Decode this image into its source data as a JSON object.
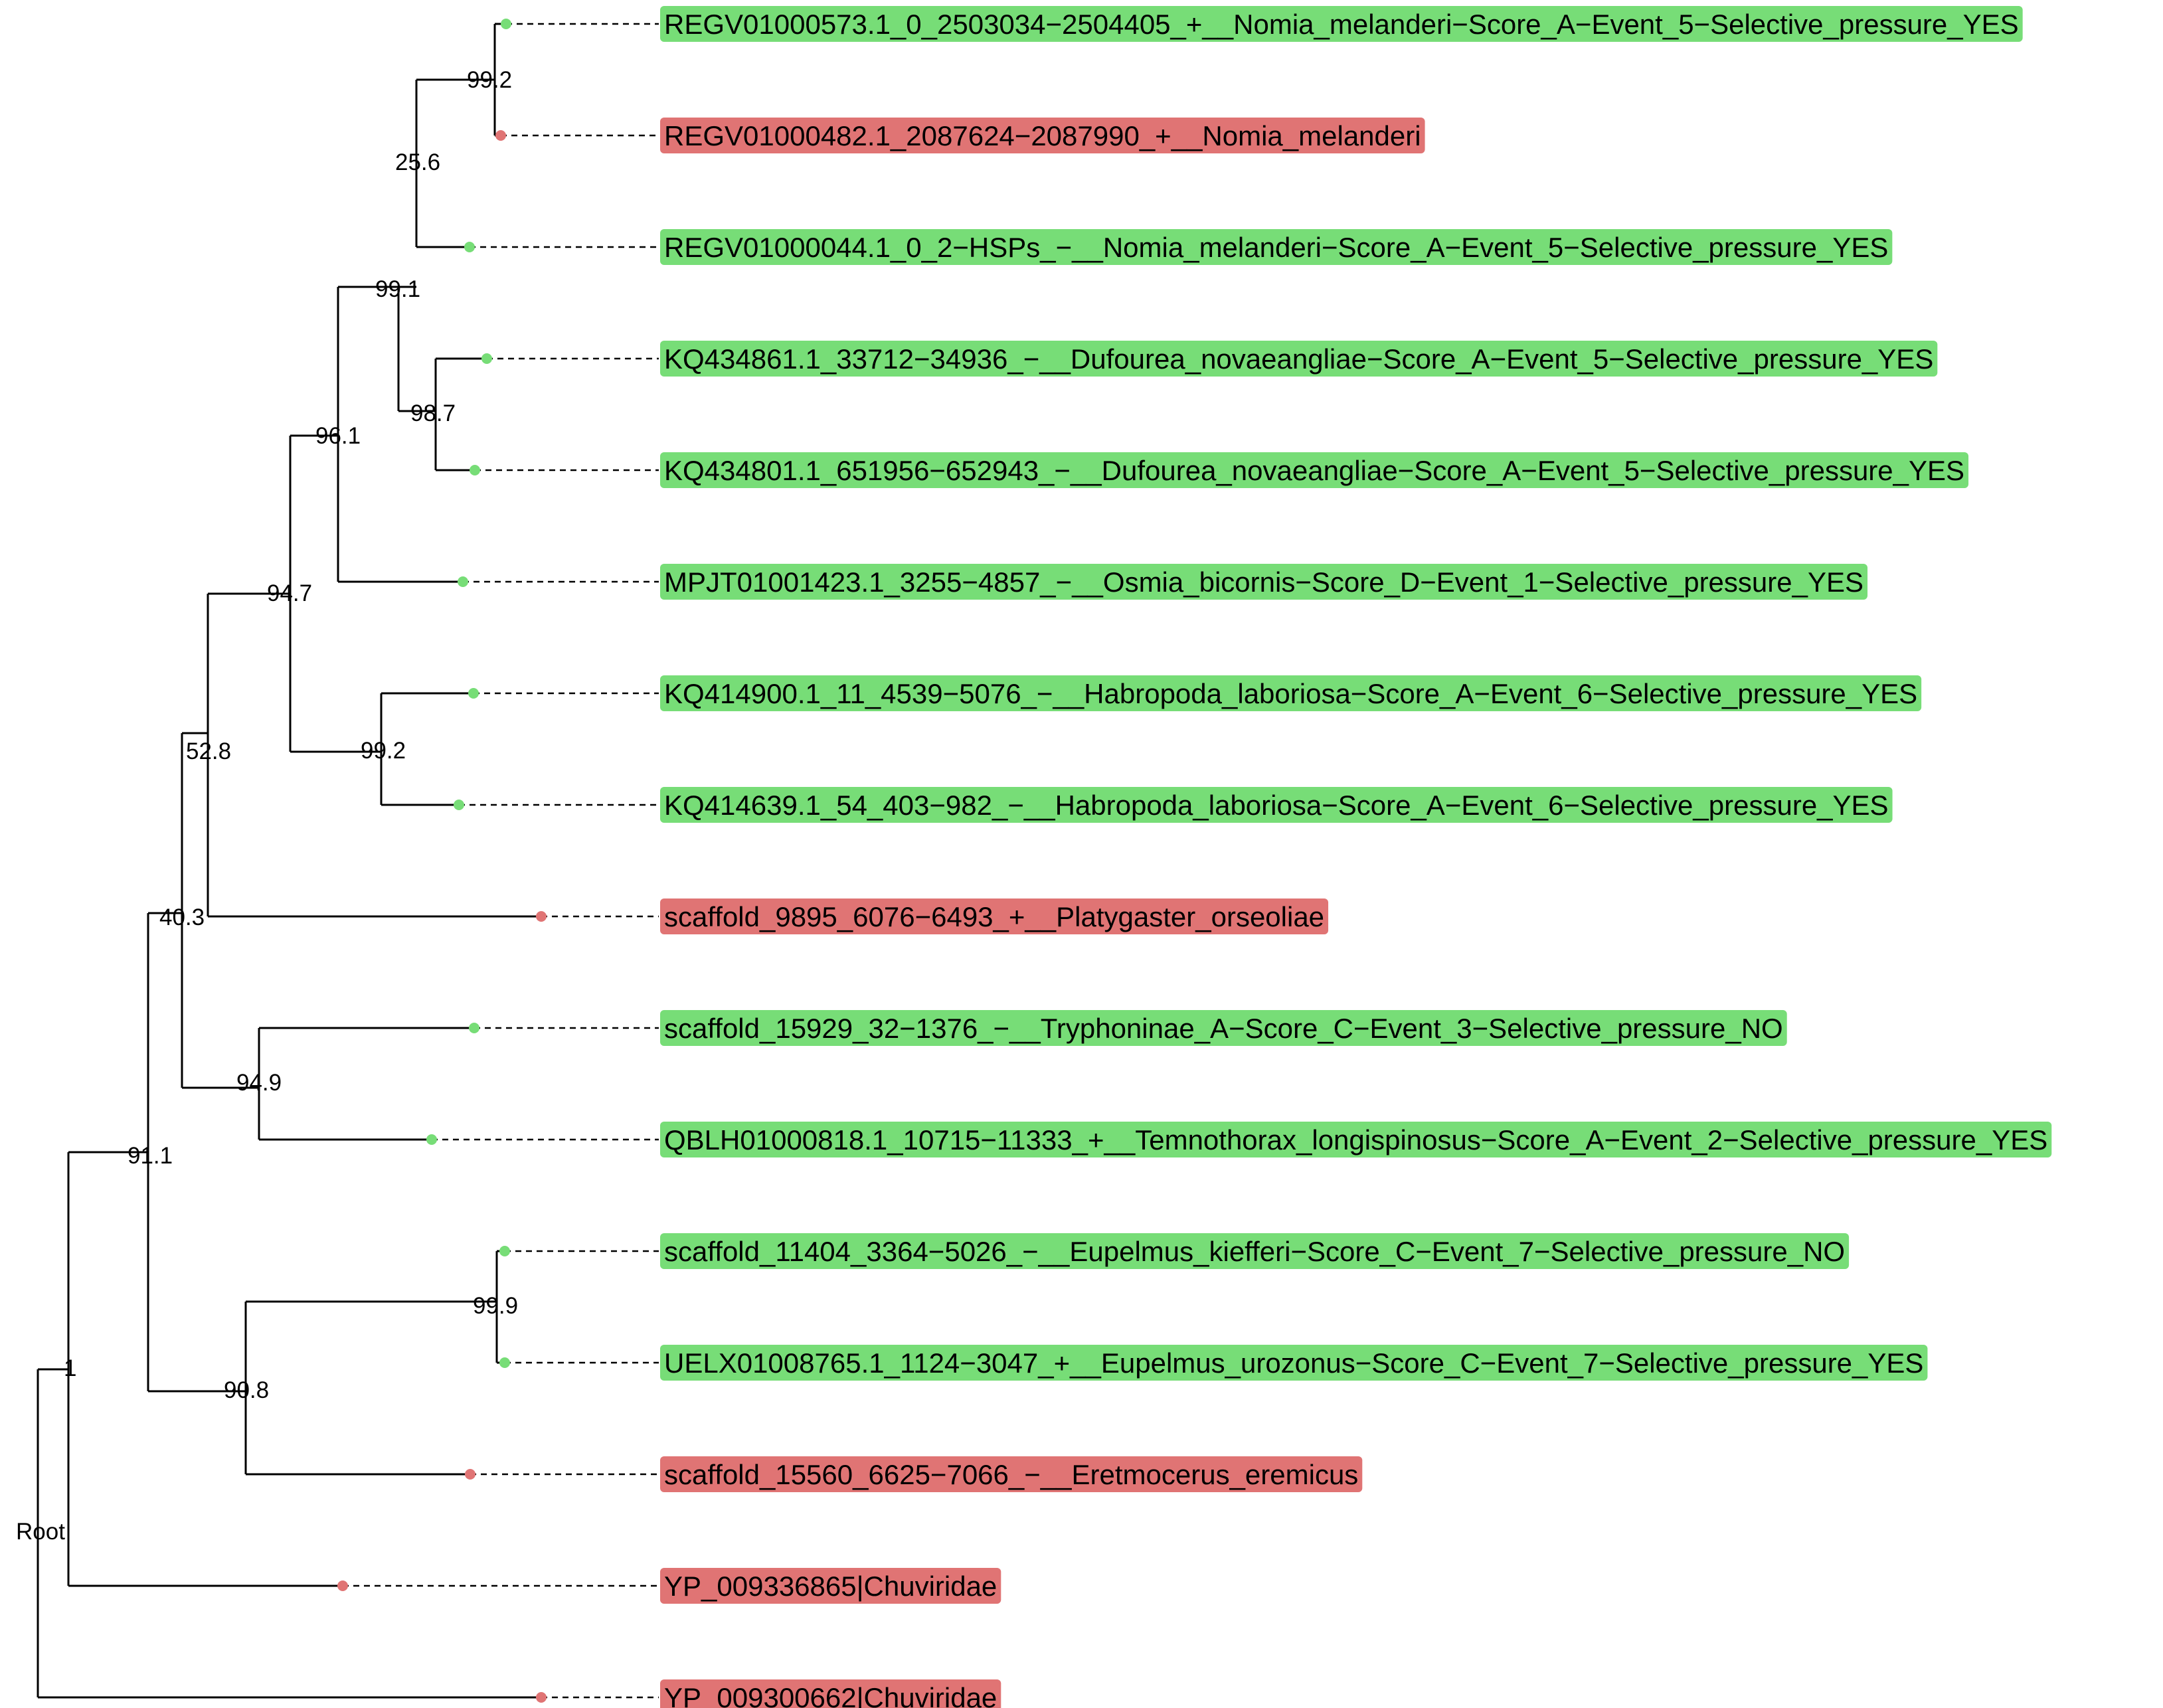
{
  "colors": {
    "yes_box": "#77DD77",
    "no_box": "#E07474",
    "yes_dot": "#77DD77",
    "no_dot": "#E07474"
  },
  "tree": {
    "root_label": "Root",
    "tips": [
      {
        "label": "REGV01000573.1_0_2503034−2504405_+__Nomia_melanderi−Score_A−Event_5−Selective_pressure_YES",
        "group": "yes"
      },
      {
        "label": "REGV01000482.1_2087624−2087990_+__Nomia_melanderi",
        "group": "no"
      },
      {
        "label": "REGV01000044.1_0_2−HSPs_−__Nomia_melanderi−Score_A−Event_5−Selective_pressure_YES",
        "group": "yes"
      },
      {
        "label": "KQ434861.1_33712−34936_−__Dufourea_novaeangliae−Score_A−Event_5−Selective_pressure_YES",
        "group": "yes"
      },
      {
        "label": "KQ434801.1_651956−652943_−__Dufourea_novaeangliae−Score_A−Event_5−Selective_pressure_YES",
        "group": "yes"
      },
      {
        "label": "MPJT01001423.1_3255−4857_−__Osmia_bicornis−Score_D−Event_1−Selective_pressure_YES",
        "group": "yes"
      },
      {
        "label": "KQ414900.1_11_4539−5076_−__Habropoda_laboriosa−Score_A−Event_6−Selective_pressure_YES",
        "group": "yes"
      },
      {
        "label": "KQ414639.1_54_403−982_−__Habropoda_laboriosa−Score_A−Event_6−Selective_pressure_YES",
        "group": "yes"
      },
      {
        "label": "scaffold_9895_6076−6493_+__Platygaster_orseoliae",
        "group": "no"
      },
      {
        "label": "scaffold_15929_32−1376_−__Tryphoninae_A−Score_C−Event_3−Selective_pressure_NO",
        "group": "yes"
      },
      {
        "label": "QBLH01000818.1_10715−11333_+__Temnothorax_longispinosus−Score_A−Event_2−Selective_pressure_YES",
        "group": "yes"
      },
      {
        "label": "scaffold_11404_3364−5026_−__Eupelmus_kiefferi−Score_C−Event_7−Selective_pressure_NO",
        "group": "yes"
      },
      {
        "label": "UELX01008765.1_1124−3047_+__Eupelmus_urozonus−Score_C−Event_7−Selective_pressure_YES",
        "group": "yes"
      },
      {
        "label": "scaffold_15560_6625−7066_−__Eretmocerus_eremicus",
        "group": "no"
      },
      {
        "label": "YP_009336865|Chuviridae",
        "group": "no"
      },
      {
        "label": "YP_009300662|Chuviridae",
        "group": "no"
      }
    ],
    "node_labels": [
      {
        "id": "n1",
        "label": "1"
      },
      {
        "id": "n911",
        "label": "91.1"
      },
      {
        "id": "n403",
        "label": "40.3"
      },
      {
        "id": "n528",
        "label": "52.8"
      },
      {
        "id": "n947",
        "label": "94.7"
      },
      {
        "id": "n961",
        "label": "96.1"
      },
      {
        "id": "n991",
        "label": "99.1"
      },
      {
        "id": "n256",
        "label": "25.6"
      },
      {
        "id": "n992a",
        "label": "99.2"
      },
      {
        "id": "n987",
        "label": "98.7"
      },
      {
        "id": "n992b",
        "label": "99.2"
      },
      {
        "id": "n949",
        "label": "94.9"
      },
      {
        "id": "n908",
        "label": "90.8"
      },
      {
        "id": "n999",
        "label": "99.9"
      }
    ]
  }
}
